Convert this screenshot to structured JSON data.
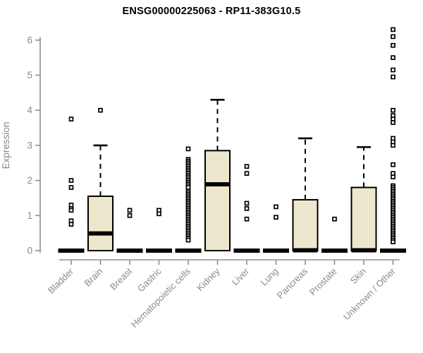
{
  "window": {
    "title": "ENSG00000225063 - RP11-383G10.5"
  },
  "colors": {
    "box_fill": "#EDE8CD",
    "box_border": "#000000",
    "median": "#000000",
    "whisker": "#000000",
    "outlier": "#000000",
    "axis": "#8E8E8E",
    "tick_text": "#8A8A8A",
    "title_text": "#000000",
    "background": "#FFFFFF"
  },
  "chart_data": {
    "type": "boxplot",
    "title": "ENSG00000225063 - RP11-383G10.5",
    "xlabel": "",
    "ylabel": "Expression",
    "ylim": [
      0,
      6.5
    ],
    "yticks": [
      0,
      1,
      2,
      3,
      4,
      5,
      6
    ],
    "grid": false,
    "legend": "none",
    "categories": [
      "Bladder",
      "Brain",
      "Breast",
      "Gastric",
      "Hematopoietic cells",
      "Kidney",
      "Liver",
      "Lung",
      "Pancreas",
      "Prostate",
      "Skin",
      "Unknown / Other"
    ],
    "series": [
      {
        "name": "Bladder",
        "whisker_low": 0,
        "q1": 0,
        "median": 0,
        "q3": 0,
        "whisker_high": 0,
        "outliers": [
          3.75,
          2.0,
          1.8,
          1.3,
          1.2,
          1.15,
          0.85,
          0.75
        ]
      },
      {
        "name": "Brain",
        "whisker_low": 0,
        "q1": 0,
        "median": 0.5,
        "q3": 1.55,
        "whisker_high": 3.0,
        "outliers": [
          4.0
        ]
      },
      {
        "name": "Breast",
        "whisker_low": 0,
        "q1": 0,
        "median": 0,
        "q3": 0,
        "whisker_high": 0,
        "outliers": [
          1.15,
          1.0
        ]
      },
      {
        "name": "Gastric",
        "whisker_low": 0,
        "q1": 0,
        "median": 0,
        "q3": 0,
        "whisker_high": 0,
        "outliers": [
          1.15,
          1.05
        ]
      },
      {
        "name": "Hematopoietic cells",
        "whisker_low": 0,
        "q1": 0,
        "median": 0,
        "q3": 0,
        "whisker_high": 0,
        "outliers": [
          2.9,
          2.6,
          2.55,
          2.5,
          2.45,
          2.4,
          2.35,
          2.3,
          2.25,
          2.2,
          2.15,
          2.1,
          2.05,
          2.0,
          1.95,
          1.9,
          1.85,
          1.8,
          1.7,
          1.65,
          1.6,
          1.55,
          1.5,
          1.45,
          1.4,
          1.35,
          1.3,
          1.25,
          1.2,
          1.15,
          1.1,
          1.05,
          1.0,
          0.95,
          0.9,
          0.85,
          0.8,
          0.75,
          0.7,
          0.65,
          0.6,
          0.55,
          0.5,
          0.45,
          0.4,
          0.35,
          0.3
        ]
      },
      {
        "name": "Kidney",
        "whisker_low": 0,
        "q1": 0,
        "median": 1.9,
        "q3": 2.85,
        "whisker_high": 4.3,
        "outliers": []
      },
      {
        "name": "Liver",
        "whisker_low": 0,
        "q1": 0,
        "median": 0,
        "q3": 0,
        "whisker_high": 0,
        "outliers": [
          2.4,
          2.2,
          1.35,
          1.2,
          0.9
        ]
      },
      {
        "name": "Lung",
        "whisker_low": 0,
        "q1": 0,
        "median": 0,
        "q3": 0,
        "whisker_high": 0,
        "outliers": [
          1.25,
          0.95
        ]
      },
      {
        "name": "Pancreas",
        "whisker_low": 0,
        "q1": 0,
        "median": 0,
        "q3": 1.45,
        "whisker_high": 3.2,
        "outliers": []
      },
      {
        "name": "Prostate",
        "whisker_low": 0,
        "q1": 0,
        "median": 0,
        "q3": 0,
        "whisker_high": 0,
        "outliers": [
          0.9
        ]
      },
      {
        "name": "Skin",
        "whisker_low": 0,
        "q1": 0,
        "median": 0,
        "q3": 1.8,
        "whisker_high": 2.95,
        "outliers": []
      },
      {
        "name": "Unknown / Other",
        "whisker_low": 0,
        "q1": 0,
        "median": 0,
        "q3": 0,
        "whisker_high": 0,
        "outliers": [
          6.3,
          6.1,
          5.85,
          5.5,
          5.15,
          4.95,
          4.0,
          3.85,
          3.75,
          3.65,
          3.2,
          3.1,
          3.0,
          2.45,
          2.2,
          2.1,
          1.85,
          1.8,
          1.75,
          1.7,
          1.65,
          1.6,
          1.55,
          1.5,
          1.45,
          1.4,
          1.35,
          1.3,
          1.25,
          1.2,
          1.15,
          1.1,
          1.05,
          1.0,
          0.95,
          0.9,
          0.85,
          0.8,
          0.75,
          0.7,
          0.65,
          0.6,
          0.55,
          0.5,
          0.45,
          0.4,
          0.35,
          0.3,
          0.25
        ]
      }
    ]
  }
}
